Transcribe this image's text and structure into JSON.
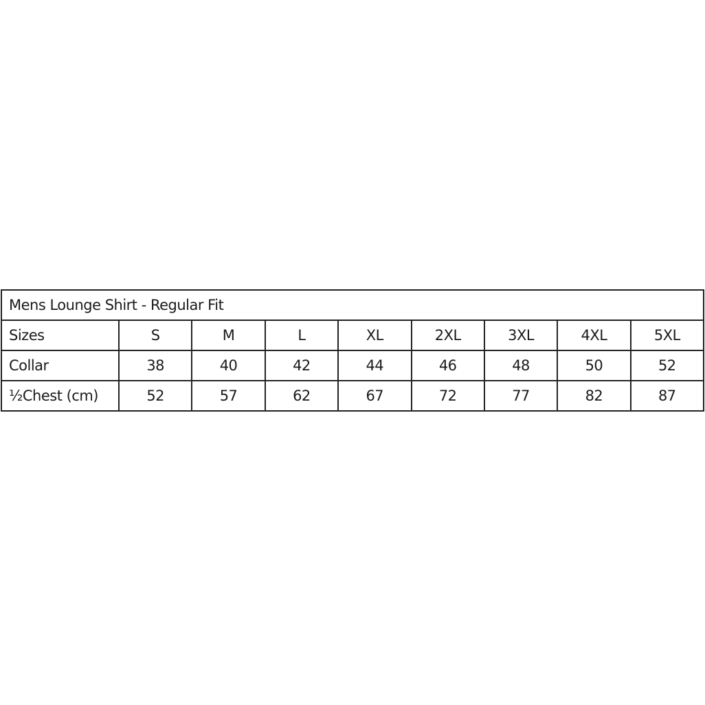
{
  "title": "Mens Lounge Shirt - Regular Fit",
  "rows": [
    {
      "label": "Sizes",
      "values": [
        "S",
        "M",
        "L",
        "XL",
        "2XL",
        "3XL",
        "4XL",
        "5XL"
      ]
    },
    {
      "label": "Collar",
      "values": [
        "38",
        "40",
        "42",
        "44",
        "46",
        "48",
        "50",
        "52"
      ]
    },
    {
      "label": "½Chest (cm)",
      "values": [
        "52",
        "57",
        "62",
        "67",
        "72",
        "77",
        "82",
        "87"
      ]
    }
  ]
}
